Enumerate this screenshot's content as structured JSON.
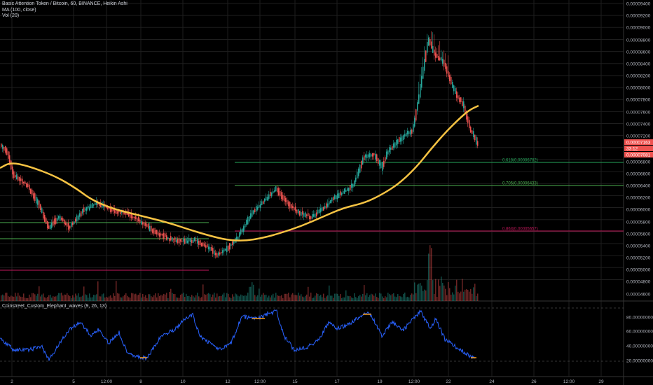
{
  "legend": {
    "title": "Basic Attention Token / Bitcoin, 60, BINANCE, Heikin Ashi",
    "ma": "MA (100, close)",
    "vol": "Vol (20)"
  },
  "oscillator": {
    "title": "Coinstreet_Custom_Elephant_waves (9, 26, 13)",
    "ticks": [
      "80.00000000",
      "60.00000000",
      "40.00000000",
      "20.00000000"
    ]
  },
  "price_axis": {
    "ticks": [
      "0.00009400",
      "0.00009200",
      "0.00009000",
      "0.00008800",
      "0.00008600",
      "0.00008400",
      "0.00008200",
      "0.00008000",
      "0.00007800",
      "0.00007600",
      "0.00007400",
      "0.00007200",
      "0.00006800",
      "0.00006600",
      "0.00006400",
      "0.00006200",
      "0.00006000",
      "0.00005800",
      "0.00005600",
      "0.00005400",
      "0.00005200",
      "0.00005000",
      "0.00004800",
      "0.00004600"
    ],
    "badges": [
      {
        "text": "0.00007163",
        "color": "#ef5350"
      },
      {
        "text": "33:12",
        "color": "#ef5350"
      },
      {
        "text": "0.00007081",
        "color": "#ef5350"
      }
    ]
  },
  "time_axis": {
    "ticks": [
      "2",
      "5",
      "12:00",
      "8",
      "10",
      "12",
      "12:00",
      "15",
      "17",
      "19",
      "12:00",
      "22",
      "24",
      "26",
      "12:00",
      "29"
    ]
  },
  "fib_levels": [
    {
      "label": "0.618(0.00006782)",
      "color": "#26a65b"
    },
    {
      "label": "0.705(0.00006433)",
      "color": "#4caf50"
    },
    {
      "label": "0.863(0.00005657)",
      "color": "#c2185b"
    }
  ],
  "colors": {
    "up": "#26a69a",
    "down": "#ef5350",
    "ma": "#f6c343",
    "osc": "#2962ff",
    "osc_hi": "#f59c1a",
    "grid": "#1e1e1e"
  }
}
